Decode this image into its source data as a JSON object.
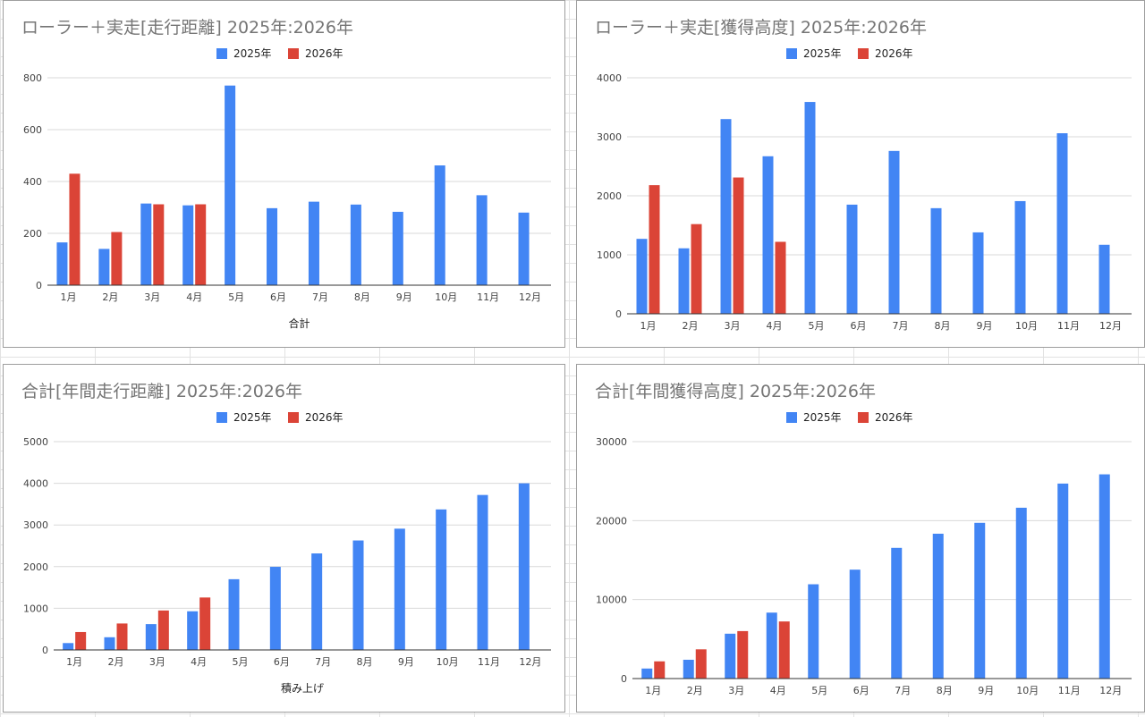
{
  "colors": {
    "s2025": "#4285f4",
    "s2026": "#db4437",
    "grid": "#d9d9d9",
    "axis": "#333333"
  },
  "chart_data": [
    {
      "type": "bar",
      "title": "ローラー＋実走[走行距離] 2025年:2026年",
      "xlabel": "合計",
      "ylabel": "",
      "ylim": [
        0,
        800
      ],
      "yticks": [
        0,
        200,
        400,
        600,
        800
      ],
      "yticklabels": [
        "0",
        "200",
        "400",
        "600",
        "800"
      ],
      "grid": true,
      "legend": "top-center",
      "categories": [
        "1月",
        "2月",
        "3月",
        "4月",
        "5月",
        "6月",
        "7月",
        "8月",
        "9月",
        "10月",
        "11月",
        "12月"
      ],
      "series": [
        {
          "name": "2025年",
          "values": [
            165,
            140,
            315,
            308,
            770,
            297,
            322,
            311,
            283,
            462,
            347,
            280
          ]
        },
        {
          "name": "2026年",
          "values": [
            430,
            205,
            312,
            312,
            null,
            null,
            null,
            null,
            null,
            null,
            null,
            null
          ]
        }
      ]
    },
    {
      "type": "bar",
      "title": "ローラー＋実走[獲得高度] 2025年:2026年",
      "xlabel": "",
      "ylabel": "",
      "ylim": [
        0,
        4000
      ],
      "yticks": [
        0,
        1000,
        2000,
        3000,
        4000
      ],
      "yticklabels": [
        "0",
        "1000",
        "2000",
        "3000",
        "4000"
      ],
      "grid": true,
      "legend": "top-center",
      "categories": [
        "1月",
        "2月",
        "3月",
        "4月",
        "5月",
        "6月",
        "7月",
        "8月",
        "9月",
        "10月",
        "11月",
        "12月"
      ],
      "series": [
        {
          "name": "2025年",
          "values": [
            1270,
            1110,
            3300,
            2670,
            3590,
            1850,
            2760,
            1790,
            1380,
            1910,
            3060,
            1170
          ]
        },
        {
          "name": "2026年",
          "values": [
            2180,
            1520,
            2310,
            1220,
            null,
            null,
            null,
            null,
            null,
            null,
            null,
            null
          ]
        }
      ]
    },
    {
      "type": "bar",
      "title": "合計[年間走行距離] 2025年:2026年",
      "xlabel": "積み上げ",
      "ylabel": "",
      "ylim": [
        0,
        5000
      ],
      "yticks": [
        0,
        1000,
        2000,
        3000,
        4000,
        5000
      ],
      "yticklabels": [
        "0",
        "1000",
        "2000",
        "3000",
        "4000",
        "5000"
      ],
      "grid": true,
      "legend": "top-center",
      "categories": [
        "1月",
        "2月",
        "3月",
        "4月",
        "5月",
        "6月",
        "7月",
        "8月",
        "9月",
        "10月",
        "11月",
        "12月"
      ],
      "series": [
        {
          "name": "2025年",
          "values": [
            165,
            305,
            620,
            928,
            1698,
            1995,
            2317,
            2628,
            2911,
            3373,
            3720,
            4000
          ]
        },
        {
          "name": "2026年",
          "values": [
            430,
            635,
            947,
            1259,
            null,
            null,
            null,
            null,
            null,
            null,
            null,
            null
          ]
        }
      ]
    },
    {
      "type": "bar",
      "title": "合計[年間獲得高度] 2025年:2026年",
      "xlabel": "",
      "ylabel": "",
      "ylim": [
        0,
        30000
      ],
      "yticks": [
        0,
        10000,
        20000,
        30000
      ],
      "yticklabels": [
        "0",
        "10000",
        "20000",
        "30000"
      ],
      "grid": true,
      "legend": "top-center",
      "categories": [
        "1月",
        "2月",
        "3月",
        "4月",
        "5月",
        "6月",
        "7月",
        "8月",
        "9月",
        "10月",
        "11月",
        "12月"
      ],
      "series": [
        {
          "name": "2025年",
          "values": [
            1270,
            2380,
            5680,
            8350,
            11940,
            13790,
            16550,
            18340,
            19720,
            21630,
            24690,
            25860
          ]
        },
        {
          "name": "2026年",
          "values": [
            2180,
            3700,
            6010,
            7230,
            null,
            null,
            null,
            null,
            null,
            null,
            null,
            null
          ]
        }
      ]
    }
  ]
}
